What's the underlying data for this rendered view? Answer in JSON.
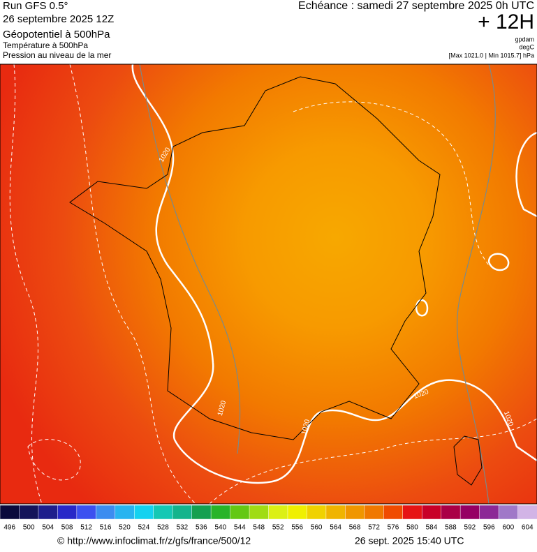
{
  "header": {
    "run": "Run GFS 0.5°",
    "date": "26 septembre 2025 12Z",
    "field1": "Géopotentiel à 500hPa",
    "field2": "Température à 500hPa",
    "field3": "Pression au niveau de la mer",
    "valid": "Echéance : samedi 27 septembre 2025 0h UTC",
    "lead": "+ 12H",
    "unit1": "gpdam",
    "unit2": "degC",
    "minmax": "[Max 1021.0 | Min 1015.7] hPa"
  },
  "map": {
    "contour_labels": [
      "1020",
      "1020",
      "1020",
      "1020",
      "1020"
    ]
  },
  "colorbar": {
    "labels": [
      "496",
      "500",
      "504",
      "508",
      "512",
      "516",
      "520",
      "524",
      "528",
      "532",
      "536",
      "540",
      "544",
      "548",
      "552",
      "556",
      "560",
      "564",
      "568",
      "572",
      "576",
      "580",
      "584",
      "588",
      "592",
      "596",
      "600",
      "604"
    ],
    "colors": [
      "#0a0a3c",
      "#14145a",
      "#1e1e8c",
      "#2828c8",
      "#3c50f0",
      "#3c8cf0",
      "#28b4f0",
      "#14d2f0",
      "#14c8b4",
      "#14b48c",
      "#14a050",
      "#28b428",
      "#64c814",
      "#a0dc14",
      "#dcf014",
      "#f0f000",
      "#f0d200",
      "#f0b400",
      "#f09600",
      "#f07800",
      "#f04b00",
      "#e61414",
      "#c80028",
      "#aa0046",
      "#960064",
      "#8c2896",
      "#a078c8",
      "#d2b4e6"
    ]
  },
  "footer": {
    "source": "© http://www.infoclimat.fr/z/gfs/france/500/12",
    "generated": "26 sept. 2025 15:40 UTC"
  }
}
